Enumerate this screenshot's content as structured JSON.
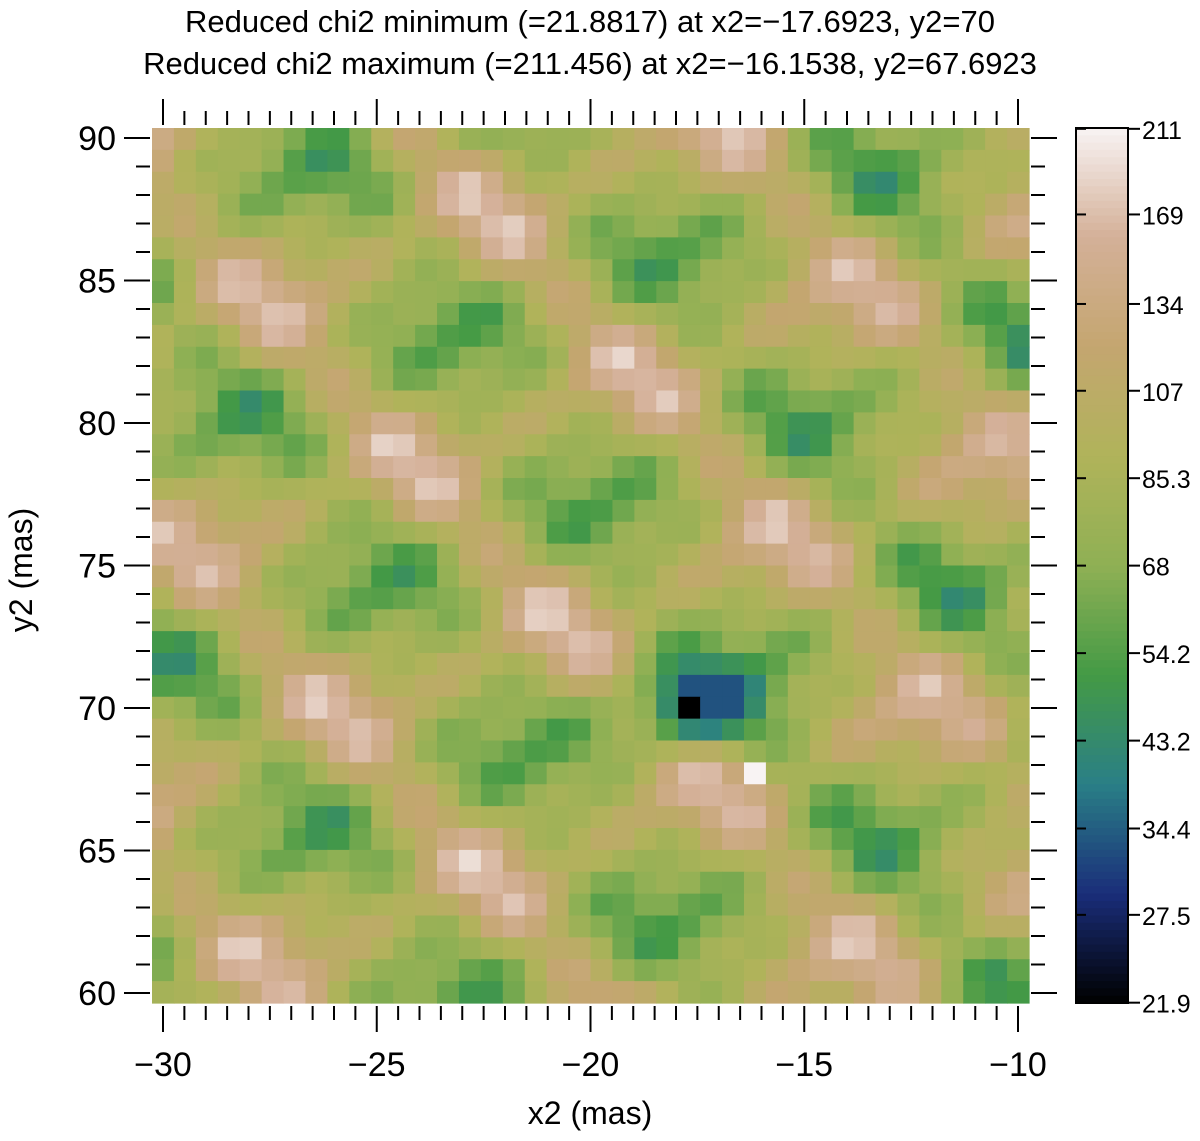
{
  "chart_data": {
    "type": "heatmap",
    "title_lines": [
      "Reduced chi2 minimum (=21.8817) at x2=−17.6923, y2=70",
      "Reduced chi2 maximum (=211.456) at x2=−16.1538, y2=67.6923"
    ],
    "xlabel": "x2 (mas)",
    "ylabel": "y2 (mas)",
    "xlim": [
      -30,
      -10
    ],
    "ylim": [
      60,
      90
    ],
    "x_ticks": [
      -30,
      -25,
      -20,
      -15,
      -10
    ],
    "x_tick_labels": [
      "−30",
      "−25",
      "−20",
      "−15",
      "−10"
    ],
    "y_ticks": [
      60,
      65,
      70,
      75,
      80,
      85,
      90
    ],
    "y_tick_labels": [
      "60",
      "65",
      "70",
      "75",
      "80",
      "85",
      "90"
    ],
    "grid_nx": 40,
    "grid_ny": 40,
    "grid_note": "per-cell values estimated from colors; minimum and maximum cells as stated in title",
    "min": {
      "value": 21.8817,
      "x": -17.6923,
      "y": 70
    },
    "max": {
      "value": 211.456,
      "x": -16.1538,
      "y": 67.6923
    },
    "colorbar": {
      "range": [
        21.8817,
        211.456
      ],
      "tick_labels": [
        "21.9",
        "27.5",
        "34.4",
        "43.2",
        "54.2",
        "68",
        "85.3",
        "107",
        "134",
        "169",
        "211"
      ],
      "tick_values": [
        21.9,
        27.5,
        34.4,
        43.2,
        54.2,
        68,
        85.3,
        107,
        134,
        169,
        211
      ]
    },
    "colormap": [
      "#000000",
      "#1a2e7a",
      "#2a7f86",
      "#449a45",
      "#8fb054",
      "#b0b35a",
      "#c4a670",
      "#d4b098",
      "#f8f3f3"
    ],
    "grid_on": false
  }
}
